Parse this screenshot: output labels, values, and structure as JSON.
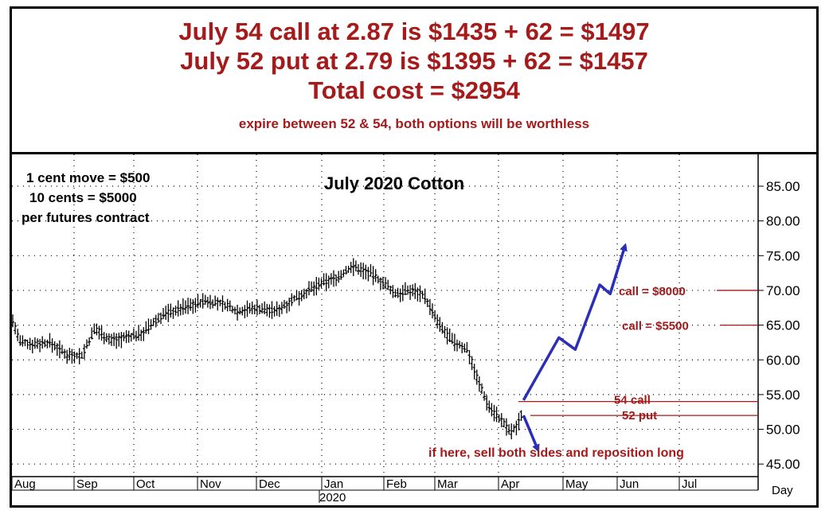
{
  "header": {
    "line1": "July 54 call at 2.87 is $1435 + 62 = $1497",
    "line2": "July 52 put at 2.79 is $1395 + 62 = $1457",
    "line3": "Total cost = $2954",
    "line4": "expire between 52 & 54, both options will be worthless"
  },
  "colors": {
    "red": "#a51a1a",
    "blue": "#2b2fb8",
    "bars": "#000000"
  },
  "chart_data": {
    "type": "ohlc-bar",
    "title": "July 2020 Cotton",
    "info": [
      "1 cent move = $500",
      "10 cents  = $5000",
      "per futures contract"
    ],
    "y_ticks": [
      "85.00",
      "80.00",
      "75.00",
      "70.00",
      "65.00",
      "60.00",
      "55.00",
      "50.00",
      "45.00"
    ],
    "ylim": [
      44,
      87
    ],
    "x_ticks": [
      "Aug",
      "Sep",
      "Oct",
      "Nov",
      "Dec",
      "Jan",
      "Feb",
      "Mar",
      "Apr",
      "May",
      "Jun",
      "Jul"
    ],
    "year_label": "2020",
    "period_label": "Day",
    "price_path": [
      [
        "2019-08-01",
        66.0
      ],
      [
        "2019-08-05",
        62.5
      ],
      [
        "2019-08-12",
        62.3
      ],
      [
        "2019-08-20",
        62.5
      ],
      [
        "2019-08-28",
        60.8
      ],
      [
        "2019-09-05",
        60.6
      ],
      [
        "2019-09-12",
        64.5
      ],
      [
        "2019-09-20",
        62.8
      ],
      [
        "2019-09-28",
        63.2
      ],
      [
        "2019-10-05",
        63.8
      ],
      [
        "2019-10-15",
        66.5
      ],
      [
        "2019-10-25",
        67.5
      ],
      [
        "2019-11-05",
        68.5
      ],
      [
        "2019-11-15",
        68.0
      ],
      [
        "2019-11-22",
        67.0
      ],
      [
        "2019-12-01",
        67.5
      ],
      [
        "2019-12-10",
        67.0
      ],
      [
        "2019-12-20",
        69.0
      ],
      [
        "2020-01-01",
        71.0
      ],
      [
        "2020-01-10",
        72.0
      ],
      [
        "2020-01-16",
        73.5
      ],
      [
        "2020-01-25",
        72.5
      ],
      [
        "2020-02-01",
        71.0
      ],
      [
        "2020-02-08",
        69.5
      ],
      [
        "2020-02-18",
        70.0
      ],
      [
        "2020-02-25",
        69.5
      ],
      [
        "2020-03-03",
        65.0
      ],
      [
        "2020-03-10",
        62.5
      ],
      [
        "2020-03-17",
        61.5
      ],
      [
        "2020-03-22",
        57.0
      ],
      [
        "2020-03-27",
        53.5
      ],
      [
        "2020-04-03",
        51.0
      ],
      [
        "2020-04-07",
        49.5
      ],
      [
        "2020-04-10",
        50.5
      ],
      [
        "2020-04-13",
        53.0
      ]
    ],
    "levels": [
      {
        "label": "call = $8000",
        "value": 70
      },
      {
        "label": "call = $5500",
        "value": 65
      },
      {
        "label": "54 call",
        "value": 54
      },
      {
        "label": "52 put",
        "value": 52
      }
    ],
    "up_arrow_path": [
      [
        "2020-04-13",
        54.2
      ],
      [
        "2020-04-30",
        63.2
      ],
      [
        "2020-05-08",
        61.5
      ],
      [
        "2020-05-22",
        70.8
      ],
      [
        "2020-05-28",
        69.5
      ],
      [
        "2020-06-05",
        76.5
      ]
    ],
    "down_arrow_path": [
      [
        "2020-04-13",
        52.0
      ],
      [
        "2020-04-20",
        47.0
      ]
    ],
    "note": "if here, sell both sides and reposition long"
  }
}
